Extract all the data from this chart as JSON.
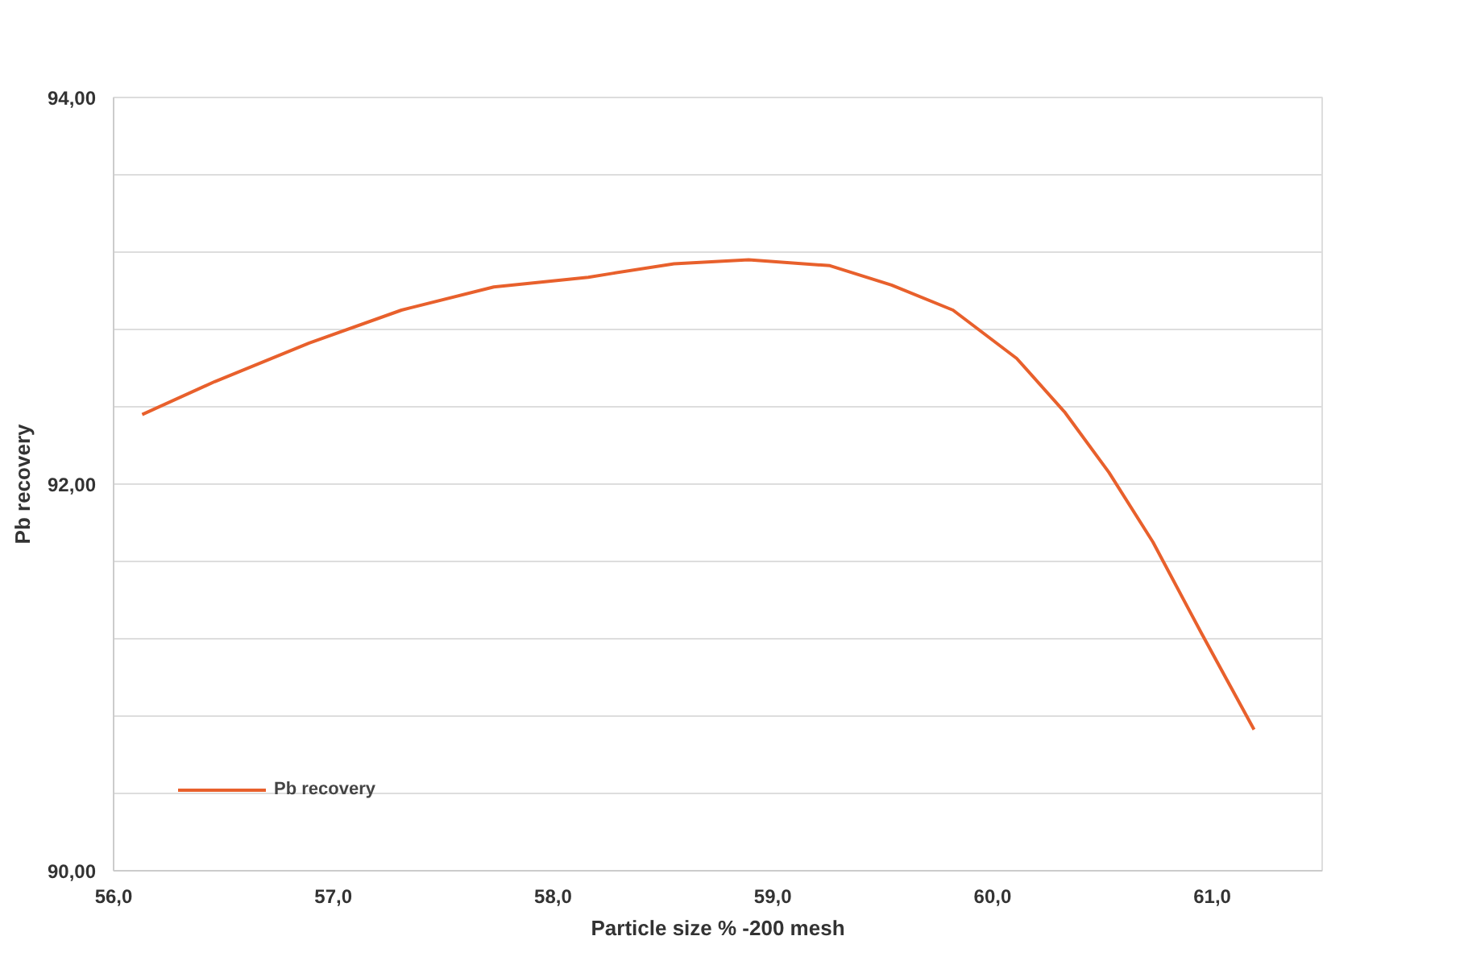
{
  "chart_data": {
    "type": "line",
    "xlabel": "Particle size % -200 mesh",
    "ylabel": "Pb recovery",
    "xlim": [
      56,
      61.5
    ],
    "ylim": [
      90,
      94
    ],
    "xticks": [
      {
        "value": 56,
        "label": "56,0"
      },
      {
        "value": 57,
        "label": "57,0"
      },
      {
        "value": 58,
        "label": "58,0"
      },
      {
        "value": 59,
        "label": "59,0"
      },
      {
        "value": 60,
        "label": "60,0"
      },
      {
        "value": 61,
        "label": "61,0"
      }
    ],
    "yticks": [
      {
        "value": 90,
        "label": "90,00"
      },
      {
        "value": 90.4,
        "label": null
      },
      {
        "value": 90.8,
        "label": null
      },
      {
        "value": 91.2,
        "label": null
      },
      {
        "value": 91.6,
        "label": null
      },
      {
        "value": 92,
        "label": "92,00"
      },
      {
        "value": 92.4,
        "label": null
      },
      {
        "value": 92.8,
        "label": null
      },
      {
        "value": 93.2,
        "label": null
      },
      {
        "value": 93.6,
        "label": null
      },
      {
        "value": 94,
        "label": "94,00"
      }
    ],
    "grid": "y",
    "legend": "bottom left",
    "marker": "none",
    "line_style": "solid",
    "series": [
      {
        "name": "Pb recovery",
        "color": "#e8602c",
        "x": [
          56.13,
          56.46,
          56.89,
          57.31,
          57.73,
          58.16,
          58.27,
          58.55,
          58.89,
          59.26,
          59.54,
          59.82,
          60.11,
          60.33,
          60.53,
          60.73,
          60.95,
          61.19
        ],
        "values": [
          92.36,
          92.53,
          92.73,
          92.9,
          93.02,
          93.07,
          93.09,
          93.14,
          93.16,
          93.13,
          93.03,
          92.9,
          92.65,
          92.37,
          92.06,
          91.7,
          91.23,
          90.73
        ]
      }
    ]
  }
}
